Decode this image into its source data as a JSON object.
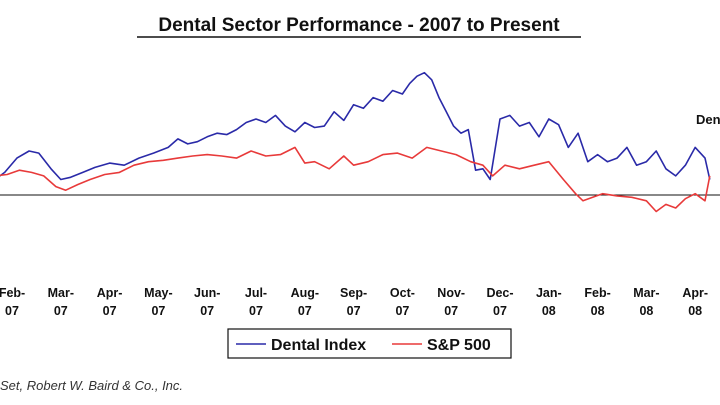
{
  "chart_data": {
    "type": "line",
    "title": "Dental Sector Performance - 2007 to Present",
    "xlabel": "",
    "ylabel": "",
    "ylim": [
      -80,
      170
    ],
    "baseline": 0,
    "categories": [
      {
        "month": "Feb-",
        "year": "07"
      },
      {
        "month": "Mar-",
        "year": "07"
      },
      {
        "month": "Apr-",
        "year": "07"
      },
      {
        "month": "May-",
        "year": "07"
      },
      {
        "month": "Jun-",
        "year": "07"
      },
      {
        "month": "Jul-",
        "year": "07"
      },
      {
        "month": "Aug-",
        "year": "07"
      },
      {
        "month": "Sep-",
        "year": "07"
      },
      {
        "month": "Oct-",
        "year": "07"
      },
      {
        "month": "Nov-",
        "year": "07"
      },
      {
        "month": "Dec-",
        "year": "07"
      },
      {
        "month": "Jan-",
        "year": "08"
      },
      {
        "month": "Feb-",
        "year": "08"
      },
      {
        "month": "Mar-",
        "year": "08"
      },
      {
        "month": "Apr-",
        "year": "08"
      }
    ],
    "series": [
      {
        "name": "Dental Index",
        "color": "#2a2aa8",
        "x": [
          -0.35,
          -0.15,
          0.1,
          0.35,
          0.55,
          0.8,
          1.0,
          1.2,
          1.45,
          1.7,
          2.0,
          2.3,
          2.6,
          2.9,
          3.2,
          3.4,
          3.6,
          3.8,
          4.0,
          4.2,
          4.4,
          4.6,
          4.8,
          5.0,
          5.2,
          5.4,
          5.6,
          5.8,
          6.0,
          6.2,
          6.4,
          6.6,
          6.8,
          7.0,
          7.2,
          7.4,
          7.6,
          7.8,
          8.0,
          8.15,
          8.3,
          8.45,
          8.6,
          8.75,
          8.9,
          9.05,
          9.2,
          9.35,
          9.5,
          9.65,
          9.8,
          10.0,
          10.2,
          10.4,
          10.6,
          10.8,
          11.0,
          11.2,
          11.4,
          11.6,
          11.8,
          12.0,
          12.2,
          12.4,
          12.6,
          12.8,
          13.0,
          13.2,
          13.4,
          13.6,
          13.8,
          14.0,
          14.2,
          14.3
        ],
        "values": [
          5,
          15,
          35,
          45,
          42,
          20,
          5,
          8,
          15,
          22,
          28,
          25,
          35,
          42,
          50,
          62,
          55,
          58,
          65,
          70,
          68,
          75,
          85,
          90,
          85,
          95,
          80,
          72,
          85,
          78,
          80,
          100,
          88,
          110,
          105,
          120,
          115,
          130,
          125,
          140,
          150,
          155,
          145,
          120,
          100,
          80,
          70,
          75,
          18,
          20,
          5,
          90,
          95,
          80,
          85,
          65,
          90,
          82,
          50,
          70,
          30,
          40,
          30,
          35,
          50,
          25,
          30,
          45,
          20,
          10,
          25,
          50,
          35,
          5
        ]
      },
      {
        "name": "S&P 500",
        "color": "#e83a3a",
        "x": [
          -0.35,
          -0.1,
          0.15,
          0.4,
          0.65,
          0.9,
          1.1,
          1.35,
          1.6,
          1.9,
          2.2,
          2.5,
          2.8,
          3.1,
          3.4,
          3.7,
          4.0,
          4.3,
          4.6,
          4.9,
          5.2,
          5.5,
          5.8,
          6.0,
          6.2,
          6.5,
          6.8,
          7.0,
          7.3,
          7.6,
          7.9,
          8.2,
          8.5,
          8.8,
          9.1,
          9.4,
          9.65,
          9.85,
          10.1,
          10.4,
          10.7,
          11.0,
          11.3,
          11.55,
          11.7,
          11.9,
          12.1,
          12.4,
          12.7,
          13.0,
          13.2,
          13.4,
          13.6,
          13.8,
          14.0,
          14.2,
          14.3
        ],
        "values": [
          10,
          12,
          18,
          15,
          10,
          -5,
          -10,
          -2,
          5,
          12,
          15,
          25,
          30,
          32,
          35,
          38,
          40,
          38,
          35,
          45,
          38,
          40,
          50,
          28,
          30,
          20,
          38,
          25,
          30,
          40,
          42,
          35,
          50,
          45,
          40,
          30,
          25,
          10,
          25,
          20,
          25,
          30,
          5,
          -15,
          -25,
          -20,
          -15,
          -18,
          -20,
          -25,
          -40,
          -30,
          -35,
          -22,
          -15,
          -25,
          10
        ]
      }
    ],
    "end_label": "Dent",
    "legend": {
      "placement": "bottom-center"
    }
  },
  "source": "Set, Robert W. Baird & Co., Inc."
}
